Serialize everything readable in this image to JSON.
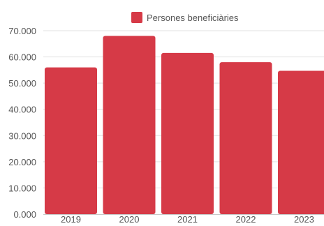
{
  "colors": {
    "bar": "#d63a47",
    "grid": "#e2e2e2",
    "axis": "#c8c8c8",
    "text": "#555555"
  },
  "chart_data": {
    "type": "bar",
    "categories": [
      "2019",
      "2020",
      "2021",
      "2022",
      "2023"
    ],
    "series": [
      {
        "name": "Persones beneficiàries",
        "values": [
          56000,
          68000,
          61500,
          58000,
          54700
        ]
      }
    ],
    "ylim": [
      0,
      70000
    ],
    "yticks": [
      0,
      10000,
      20000,
      30000,
      40000,
      50000,
      60000,
      70000
    ],
    "ytick_labels": [
      "0.000",
      "10.000",
      "20.000",
      "30.000",
      "40.000",
      "50.000",
      "60.000",
      "70.000"
    ],
    "grid": true,
    "legend": "top-center"
  }
}
